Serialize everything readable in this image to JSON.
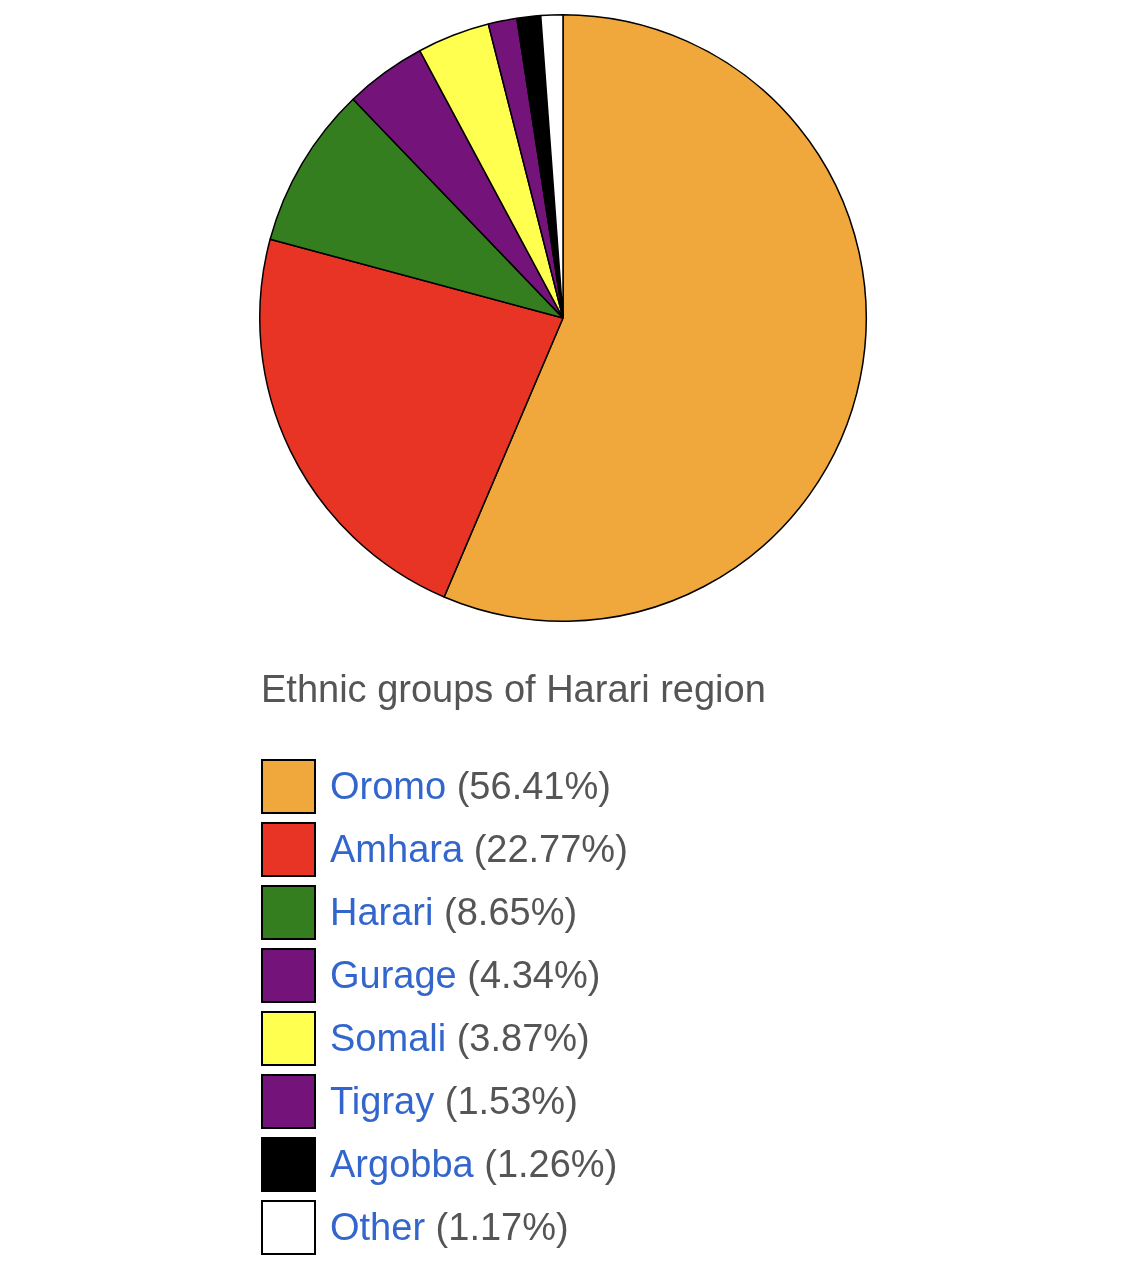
{
  "chart_data": {
    "type": "pie",
    "title": "Ethnic groups of Harari region",
    "categories": [
      "Oromo",
      "Amhara",
      "Harari",
      "Gurage",
      "Somali",
      "Tigray",
      "Argobba",
      "Other"
    ],
    "values": [
      56.41,
      22.77,
      8.65,
      4.34,
      3.87,
      1.53,
      1.26,
      1.17
    ],
    "value_labels": [
      "(56.41%)",
      "(22.77%)",
      "(8.65%)",
      "(4.34%)",
      "(3.87%)",
      "(1.53%)",
      "(1.26%)",
      "(1.17%)"
    ],
    "colors": [
      "#f0a83c",
      "#e83424",
      "#357e20",
      "#74137a",
      "#ffff50",
      "#74137a",
      "#000000",
      "#ffffff"
    ],
    "legend": "bottom"
  }
}
